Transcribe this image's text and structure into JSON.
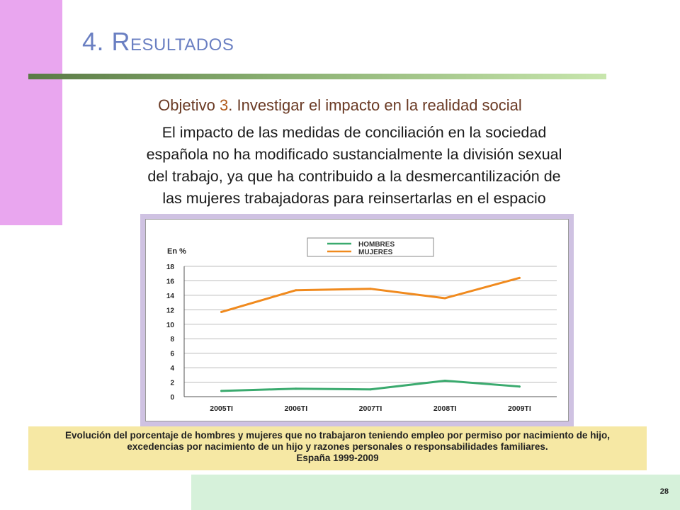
{
  "slide": {
    "title_big": "4. R",
    "title_small": "ESULTADOS",
    "objective_prefix": "Objetivo ",
    "objective_num": "3",
    "objective_rest": ". Investigar el impacto en la realidad social",
    "body_lines": [
      "El impacto de las medidas de conciliación en la sociedad",
      "española no ha modificado sustancialmente la división sexual",
      "del trabajo, ya que ha contribuido a la desmercantilización de",
      "las mujeres trabajadoras para reinsertarlas en el espacio"
    ],
    "caption_lines": [
      "Evolución del porcentaje de hombres y mujeres que no trabajaron teniendo empleo por permiso por nacimiento de hijo,",
      "excedencias por nacimiento de un hijo y razones personales o responsabilidades familiares.",
      "España 1999-2009"
    ],
    "page_number": "28"
  },
  "colors": {
    "hombres": "#3aaa6e",
    "mujeres": "#f08a1e"
  },
  "chart_data": {
    "type": "line",
    "ylabel": "En %",
    "categories": [
      "2005TI",
      "2006TI",
      "2007TI",
      "2008TI",
      "2009TI"
    ],
    "yticks": [
      "0",
      "2",
      "4",
      "6",
      "8",
      "10",
      "12",
      "14",
      "16",
      "18"
    ],
    "ylim": [
      0,
      18
    ],
    "grid": true,
    "legend_position": "top",
    "series": [
      {
        "name": "HOMBRES",
        "values": [
          0.8,
          1.1,
          1.0,
          2.2,
          1.4
        ]
      },
      {
        "name": "MUJERES",
        "values": [
          11.7,
          14.7,
          14.9,
          13.6,
          16.4
        ]
      }
    ]
  }
}
